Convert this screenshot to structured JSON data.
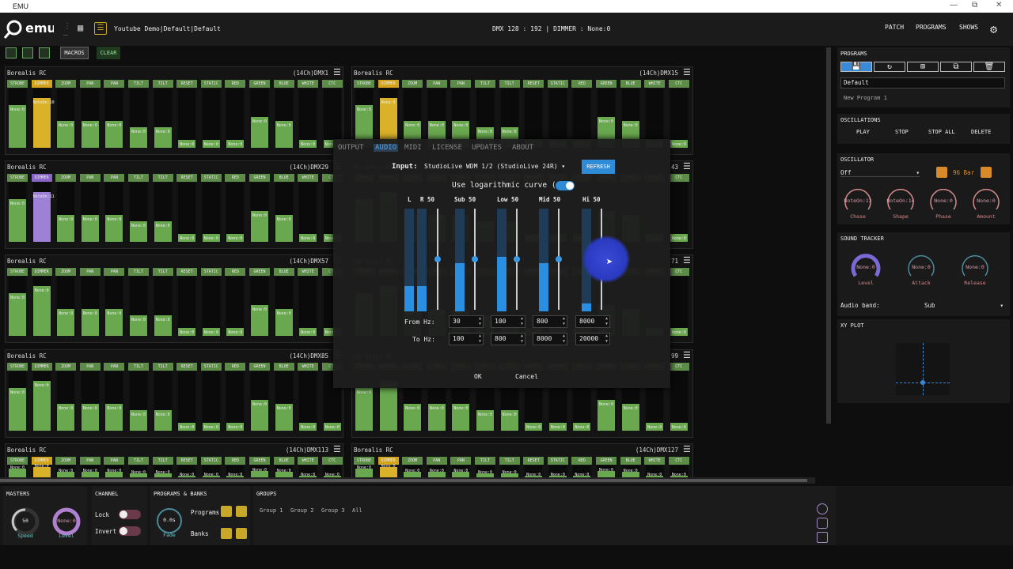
{
  "window": {
    "title": "EMU"
  },
  "topbar": {
    "project": "Youtube Demo|Default|Default",
    "dmx_info": "DMX 128 : 192 | DIMMER : None:0",
    "nav": [
      "PATCH",
      "PROGRAMS",
      "SHOWS"
    ]
  },
  "toolbar": {
    "macros_label": "MACROS",
    "clear_label": "CLEAR"
  },
  "fixtures": [
    {
      "name": "Borealis RC",
      "dmx": "(14Ch)DMX1"
    },
    {
      "name": "Borealis RC",
      "dmx": "(14Ch)DMX15"
    },
    {
      "name": "Borealis RC",
      "dmx": "(14Ch)DMX29"
    },
    {
      "name": "Borealis RC",
      "dmx": "43"
    },
    {
      "name": "Borealis RC",
      "dmx": "(14Ch)DMX57"
    },
    {
      "name": "Borealis RC",
      "dmx": "71"
    },
    {
      "name": "Borealis RC",
      "dmx": "(14Ch)DMX85"
    },
    {
      "name": "Borealis RC",
      "dmx": "99"
    },
    {
      "name": "Borealis RC",
      "dmx": "(14Ch)DMX113"
    },
    {
      "name": "Borealis RC",
      "dmx": "(14Ch)DMX127"
    }
  ],
  "channels": [
    "STROBE",
    "DIMMER",
    "ZOOM",
    "PAN",
    "PAN",
    "TILT",
    "TILT",
    "RESET",
    "STATIC",
    "RED",
    "GREEN",
    "BLUE",
    "WHITE",
    "CTC"
  ],
  "channel_value": "None:0",
  "dimmer_values": {
    "row1": "NoteOn:10",
    "row2": "NoteOn:11"
  },
  "right": {
    "programs": {
      "title": "PROGRAMS",
      "field_value": "Default",
      "item": "New Program 1",
      "buttons": [
        "save-icon",
        "refresh-icon",
        "add-icon",
        "copy-icon",
        "trash-icon"
      ]
    },
    "oscillations": {
      "title": "OSCILLATIONS",
      "buttons": [
        "PLAY",
        "STOP",
        "STOP ALL",
        "DELETE"
      ]
    },
    "oscillator": {
      "title": "OSCILLATOR",
      "select": "Off",
      "bar_label": "96 Bar",
      "knobs": [
        {
          "value": "NoteOn:13",
          "label": "Chase"
        },
        {
          "value": "NoteOn:14",
          "label": "Shape"
        },
        {
          "value": "None:0",
          "label": "Phase"
        },
        {
          "value": "None:0",
          "label": "Amount"
        }
      ]
    },
    "sound_tracker": {
      "title": "SOUND TRACKER",
      "knobs": [
        {
          "value": "None:0",
          "label": "Level"
        },
        {
          "value": "None:0",
          "label": "Attack"
        },
        {
          "value": "None:0",
          "label": "Release"
        }
      ],
      "band_label": "Audio band:",
      "band_value": "Sub"
    },
    "xy_plot": {
      "title": "XY PLOT"
    }
  },
  "bottom": {
    "masters": {
      "title": "MASTERS",
      "speed_value": "50",
      "speed_label": "Speed",
      "level_value": "None:0",
      "level_label": "Level"
    },
    "channel": {
      "title": "CHANNEL",
      "lock": "Lock",
      "invert": "Invert"
    },
    "programs_banks": {
      "title": "PROGRAMS & BANKS",
      "fade_value": "0.0s",
      "fade_label": "Fade",
      "programs": "Programs",
      "banks": "Banks"
    },
    "groups": {
      "title": "GROUPS",
      "items": [
        "Group 1",
        "Group 2",
        "Group 3",
        "All"
      ]
    }
  },
  "dialog": {
    "tabs": [
      "OUTPUT",
      "AUDIO",
      "MIDI",
      "LICENSE",
      "UPDATES",
      "ABOUT"
    ],
    "active_tab": "AUDIO",
    "input_label": "Input:",
    "input_value": "StudioLive WDM 1/2 (StudioLive 24R)",
    "refresh": "REFRESH",
    "log_label": "Use logarithmic curve (dB):",
    "bands": [
      {
        "label": "L",
        "level": 0.25
      },
      {
        "label": "R 50",
        "level": 0.25
      },
      {
        "label": "Sub 50",
        "level": 0.47,
        "slider": 0.5
      },
      {
        "label": "Low 50",
        "level": 0.53,
        "slider": 0.5
      },
      {
        "label": "Mid 50",
        "level": 0.47,
        "slider": 0.5
      },
      {
        "label": "Hi 50",
        "level": 0.08,
        "slider": 0.5
      }
    ],
    "from_label": "From Hz:",
    "to_label": "To Hz:",
    "from_values": [
      "30",
      "100",
      "800",
      "8000"
    ],
    "to_values": [
      "100",
      "800",
      "8000",
      "20000"
    ],
    "ok": "OK",
    "cancel": "Cancel"
  },
  "colors": {
    "accent_blue": "#2f8bd6",
    "channel_green": "#5c8c48",
    "dimmer_yellow": "#d4a51a",
    "dimmer_purple": "#8a66c8"
  }
}
